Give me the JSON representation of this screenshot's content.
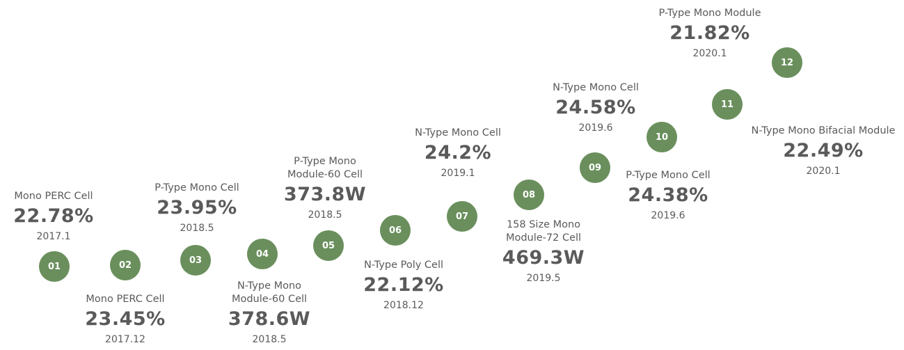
{
  "milestones": [
    {
      "number": "01",
      "title": [
        "Mono PERC Cell"
      ],
      "value": "22.78%",
      "date": "2017.1"
    },
    {
      "number": "02",
      "title": [
        "Mono PERC Cell"
      ],
      "value": "23.45%",
      "date": "2017.12"
    },
    {
      "number": "03",
      "title": [
        "P-Type Mono Cell"
      ],
      "value": "23.95%",
      "date": "2018.5"
    },
    {
      "number": "04",
      "title": [
        "N-Type Mono",
        "Module-60 Cell"
      ],
      "value": "378.6W",
      "date": "2018.5"
    },
    {
      "number": "05",
      "title": [
        "P-Type Mono",
        "Module-60 Cell"
      ],
      "value": "373.8W",
      "date": "2018.5"
    },
    {
      "number": "06",
      "title": [
        "N-Type Poly Cell"
      ],
      "value": "22.12%",
      "date": "2018.12"
    },
    {
      "number": "07",
      "title": [
        "N-Type Mono Cell"
      ],
      "value": "24.2%",
      "date": "2019.1"
    },
    {
      "number": "08",
      "title": [
        "158 Size Mono",
        "Module-72 Cell"
      ],
      "value": "469.3W",
      "date": "2019.5"
    },
    {
      "number": "09",
      "title": [
        "P-Type Mono Cell"
      ],
      "value": "24.38%",
      "date": "2019.6"
    },
    {
      "number": "10",
      "title": [
        "N-Type Mono Cell"
      ],
      "value": "24.58%",
      "date": "2019.6"
    },
    {
      "number": "11",
      "title": [
        "N-Type Mono Bifacial Module"
      ],
      "value": "22.49%",
      "date": "2020.1"
    },
    {
      "number": "12",
      "title": [
        "P-Type Mono Module"
      ],
      "value": "21.82%",
      "date": "2020.1"
    }
  ]
}
